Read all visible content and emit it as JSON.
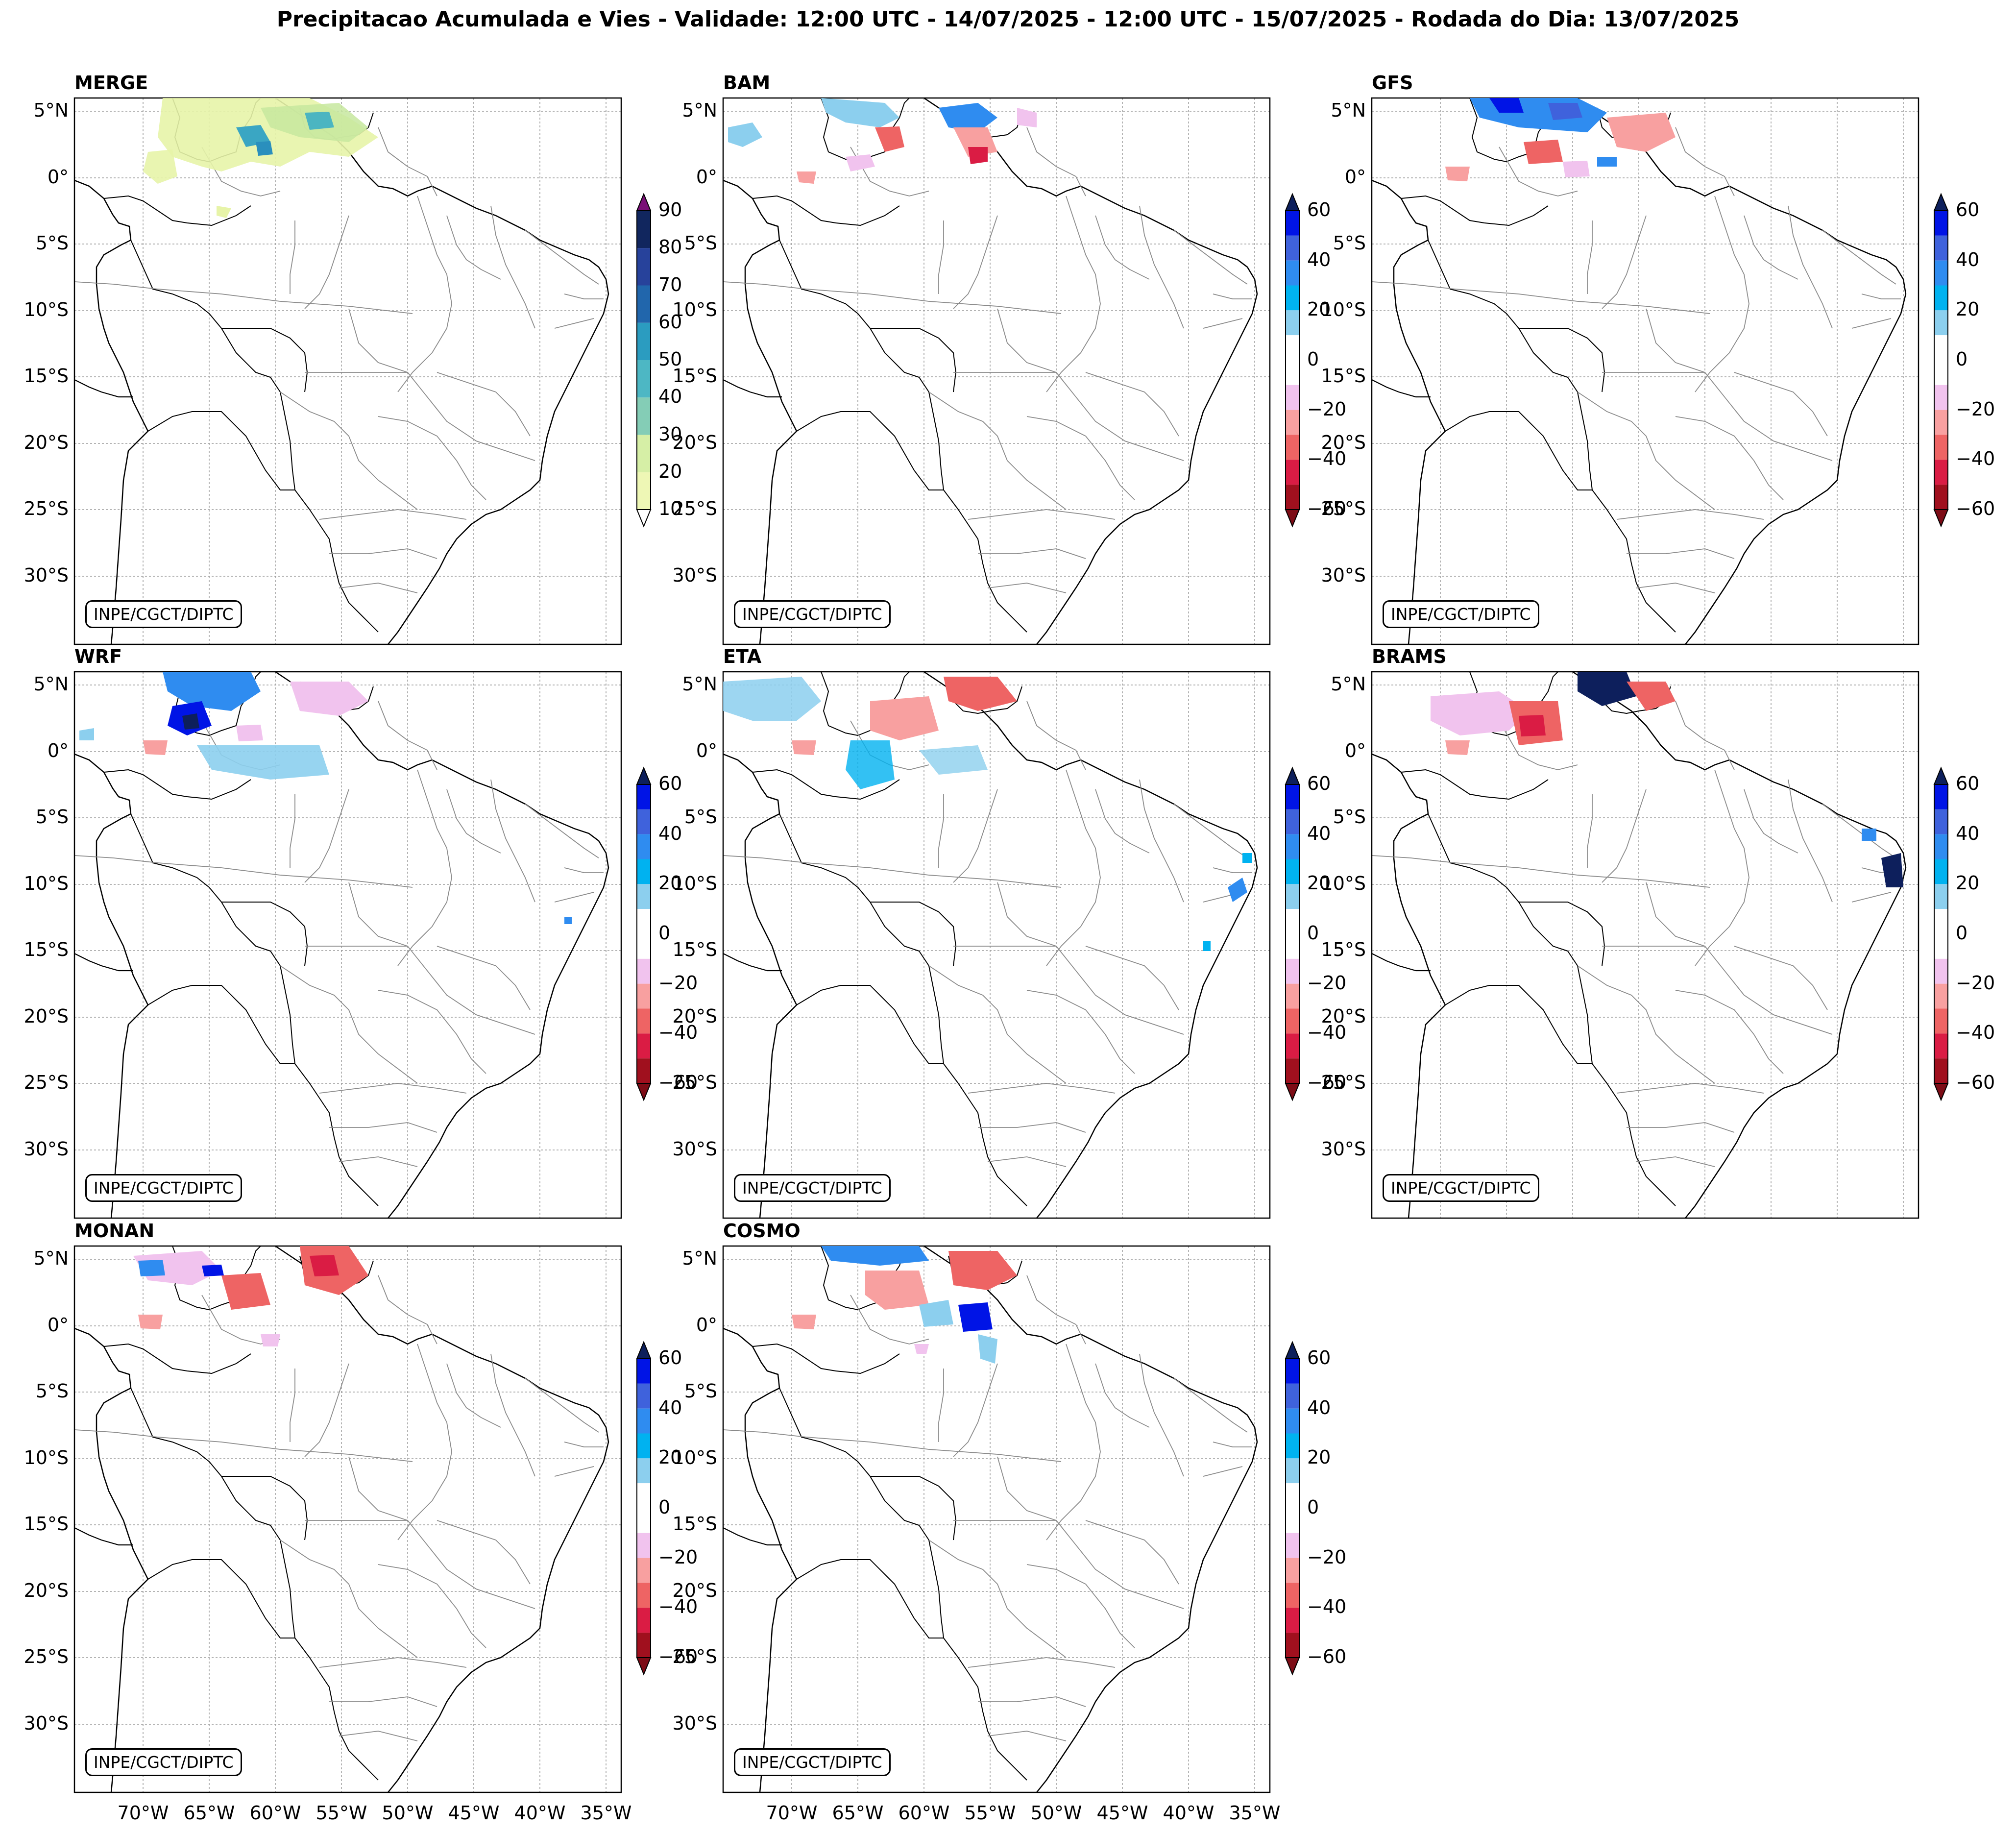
{
  "figure_title": "Precipitacao Acumulada e Vies - Validade: 12:00 UTC - 14/07/2025 - 12:00 UTC - 15/07/2025 - Rodada do Dia: 13/07/2025",
  "credit": "INPE/CGCT/DIPTC",
  "lat_labels": [
    "5°N",
    "0°",
    "5°S",
    "10°S",
    "15°S",
    "20°S",
    "25°S",
    "30°S"
  ],
  "lon_labels": [
    "70°W",
    "65°W",
    "60°W",
    "55°W",
    "50°W",
    "45°W",
    "40°W",
    "35°W"
  ],
  "panels": [
    {
      "name": "MERGE",
      "kind": "precip"
    },
    {
      "name": "BAM",
      "kind": "bias"
    },
    {
      "name": "GFS",
      "kind": "bias"
    },
    {
      "name": "WRF",
      "kind": "bias"
    },
    {
      "name": "ETA",
      "kind": "bias"
    },
    {
      "name": "BRAMS",
      "kind": "bias"
    },
    {
      "name": "MONAN",
      "kind": "bias"
    },
    {
      "name": "COSMO",
      "kind": "bias"
    }
  ],
  "colorbars": {
    "precip": {
      "tick_labels": [
        "10",
        "20",
        "30",
        "40",
        "50",
        "60",
        "70",
        "80",
        "90"
      ],
      "colors": [
        "#eef7b5",
        "#d6efa6",
        "#84cdb6",
        "#4db7c4",
        "#2b9cc0",
        "#2166ac",
        "#27429b",
        "#11265e"
      ],
      "over_color": "#7a0f77",
      "under_color": "#ffffff"
    },
    "bias": {
      "tick_labels": [
        "60",
        "40",
        "20",
        "0",
        "−20",
        "−40",
        "−60"
      ],
      "colors_top_to_bottom": [
        "#0014e6",
        "#3f62dc",
        "#2f8cf0",
        "#00b2f0",
        "#8ccfee",
        "#ffffff",
        "#ffffff",
        "#f1c3ee",
        "#f8a0a0",
        "#ee6464",
        "#da1c44",
        "#a0101e"
      ],
      "over_color": "#0d1f5c",
      "under_color": "#7d0c16"
    }
  }
}
